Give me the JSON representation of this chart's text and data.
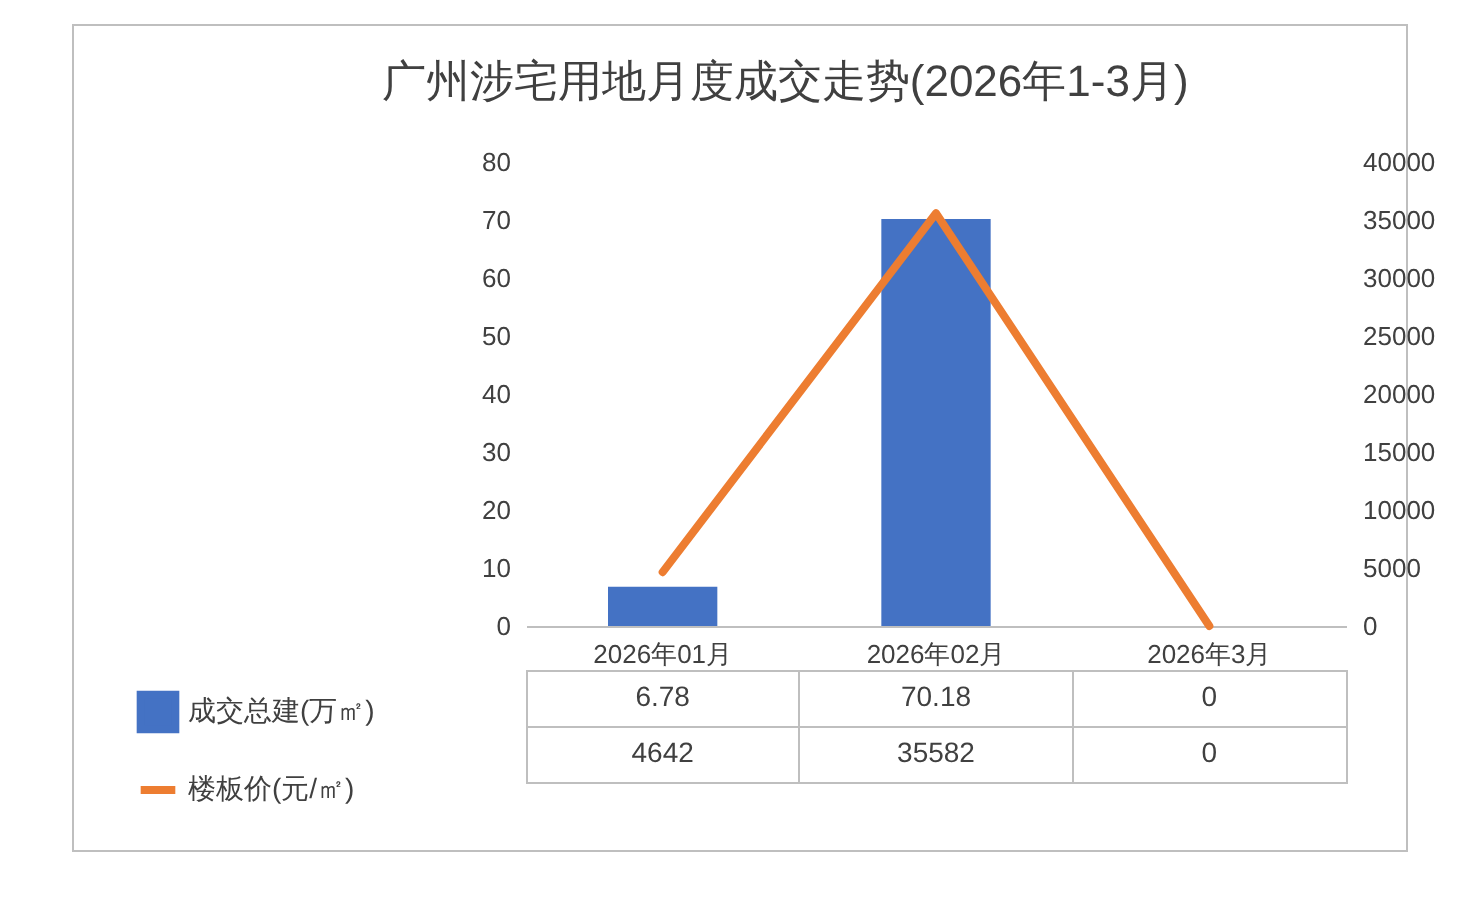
{
  "chart_data": {
    "type": "bar",
    "title": "广州涉宅用地月度成交走势(2026年1-3月)",
    "categories": [
      "2026年01月",
      "2026年02月",
      "2026年3月"
    ],
    "series": [
      {
        "name": "成交总建(万㎡)",
        "color": "#4472c4",
        "values": [
          6.78,
          70.18,
          0
        ]
      },
      {
        "name": "楼板价(元/㎡)",
        "type": "line",
        "axis": "y2",
        "color": "#ed7d31",
        "values": [
          4642,
          35582,
          0
        ]
      }
    ],
    "ylim": [
      0,
      80
    ],
    "yticks": [
      0,
      10,
      20,
      30,
      40,
      50,
      60,
      70,
      80
    ],
    "y2lim": [
      0,
      40000
    ],
    "y2ticks": [
      0,
      5000,
      10000,
      15000,
      20000,
      25000,
      30000,
      35000,
      40000
    ],
    "data_labels": true,
    "legend": "bottom left",
    "grid": false,
    "marker": "none",
    "line_style": "solid"
  }
}
